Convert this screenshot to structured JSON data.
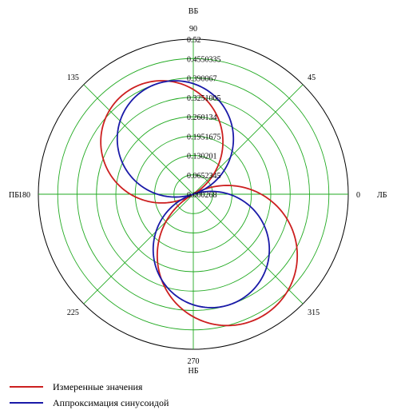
{
  "chart_data": {
    "type": "polar",
    "angular_ticks": [
      "0",
      "45",
      "90",
      "135",
      "180",
      "225",
      "270",
      "315"
    ],
    "direction_labels": {
      "top": "ВБ",
      "bottom": "НБ",
      "left": "ПБ",
      "right": "ЛБ"
    },
    "radial_ticks": [
      "0.52",
      "0.4550335",
      "0.390067",
      "0.3251005",
      "0.260134",
      "0.1951675",
      "0.130201",
      "0.0652345",
      "0.000268"
    ],
    "r_range": [
      0.000268,
      0.52
    ],
    "grid": true,
    "legend_position": "bottom-left",
    "series": [
      {
        "name": "Измеренные значения",
        "color": "#cc1f1f",
        "lobes": [
          {
            "direction_deg": 121,
            "amplitude": 0.41
          },
          {
            "direction_deg": 299,
            "amplitude": 0.47
          }
        ]
      },
      {
        "name": "Аппроксимация синусоидой",
        "color": "#1a1aa8",
        "lobes": [
          {
            "direction_deg": 108,
            "amplitude": 0.39
          },
          {
            "direction_deg": 288,
            "amplitude": 0.39
          }
        ]
      }
    ]
  }
}
